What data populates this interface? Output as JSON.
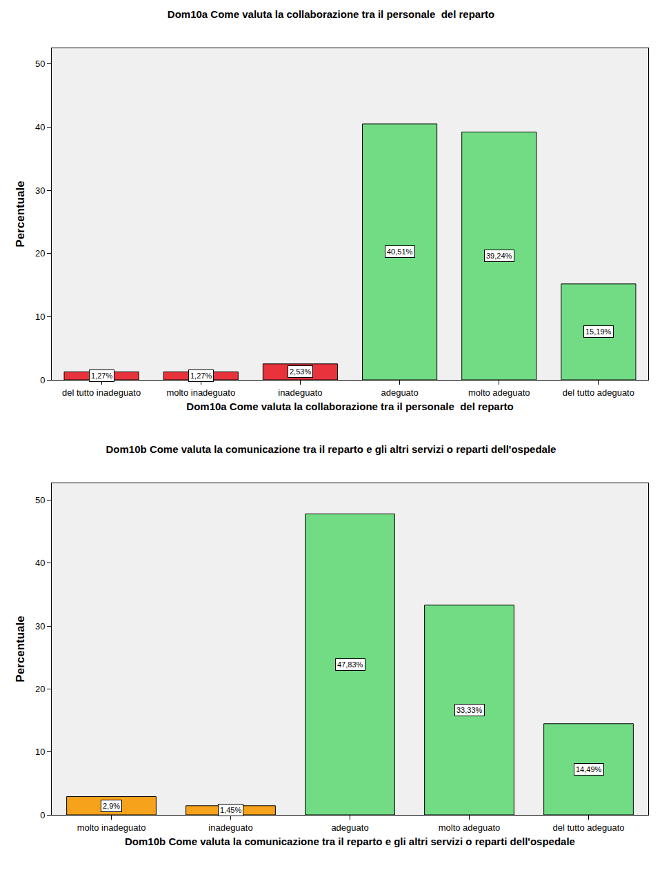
{
  "chart_data": [
    {
      "type": "bar",
      "title": "Dom10a Come valuta la collaborazione tra il personale  del reparto",
      "x_label": "Dom10a Come valuta la collaborazione tra il personale  del reparto",
      "y_label": "Percentuale",
      "categories": [
        "del tutto inadeguato",
        "molto inadeguato",
        "inadeguato",
        "adeguato",
        "molto adeguato",
        "del tutto adeguato"
      ],
      "values": [
        1.27,
        1.27,
        2.53,
        40.51,
        39.24,
        15.19
      ],
      "value_labels": [
        "1,27%",
        "1,27%",
        "2,53%",
        "40,51%",
        "39,24%",
        "15,19%"
      ],
      "colors": [
        "#e8333c",
        "#e8333c",
        "#e8333c",
        "#72dc84",
        "#72dc84",
        "#72dc84"
      ],
      "ylim": [
        0,
        52.5
      ],
      "yticks": [
        0,
        10,
        20,
        30,
        40,
        50
      ],
      "grid": false,
      "data_labels": true
    },
    {
      "type": "bar",
      "title": "Dom10b Come valuta la comunicazione tra il reparto e gli altri servizi o reparti dell'ospedale",
      "x_label": "Dom10b Come valuta la comunicazione tra il reparto e gli altri servizi o reparti dell'ospedale",
      "y_label": "Percentuale",
      "categories": [
        "molto inadeguato",
        "inadeguato",
        "adeguato",
        "molto adeguato",
        "del tutto adeguato"
      ],
      "values": [
        2.9,
        1.45,
        47.83,
        33.33,
        14.49
      ],
      "value_labels": [
        "2,9%",
        "1,45%",
        "47,83%",
        "33,33%",
        "14,49%"
      ],
      "colors": [
        "#f7a21b",
        "#f7a21b",
        "#72dc84",
        "#72dc84",
        "#72dc84"
      ],
      "ylim": [
        0,
        52.7
      ],
      "yticks": [
        0,
        10,
        20,
        30,
        40,
        50
      ],
      "grid": false,
      "data_labels": true
    }
  ]
}
